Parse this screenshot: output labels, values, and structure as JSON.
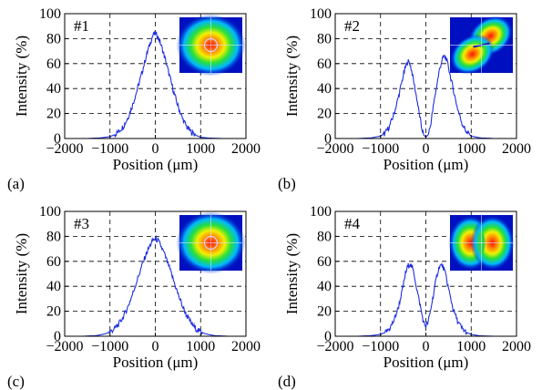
{
  "figure": {
    "label_color": "#000000",
    "line_color": "#1f2fe0"
  },
  "chart_data": [
    {
      "type": "line",
      "panel_letter": "(a)",
      "tag": "#1",
      "xlabel": "Position (μm)",
      "ylabel": "Intensity (%)",
      "xlim": [
        -2000,
        2000
      ],
      "ylim": [
        0,
        100
      ],
      "xticks": [
        -2000,
        -1000,
        0,
        1000,
        2000
      ],
      "yticks": [
        0,
        20,
        40,
        60,
        80,
        100
      ],
      "grid": "dashed",
      "inset_beam": "single-lobe",
      "x": [
        -1500,
        -1200,
        -1000,
        -900,
        -800,
        -700,
        -600,
        -500,
        -400,
        -300,
        -200,
        -100,
        -50,
        0,
        50,
        100,
        200,
        300,
        400,
        500,
        600,
        700,
        800,
        900,
        1000,
        1200,
        1500
      ],
      "y": [
        0,
        0.5,
        1.5,
        3,
        6,
        10,
        17,
        27,
        39,
        52,
        66,
        78,
        83,
        84,
        82,
        78,
        66,
        52,
        38,
        26,
        16,
        9,
        5,
        2.5,
        1,
        0.3,
        0
      ]
    },
    {
      "type": "line",
      "panel_letter": "(b)",
      "tag": "#2",
      "xlabel": "Position (μm)",
      "ylabel": "Intensity (%)",
      "xlim": [
        -2000,
        2000
      ],
      "ylim": [
        0,
        100
      ],
      "xticks": [
        -2000,
        -1000,
        0,
        1000,
        2000
      ],
      "yticks": [
        0,
        20,
        40,
        60,
        80,
        100
      ],
      "grid": "dashed",
      "inset_beam": "two-lobe-diagonal",
      "x": [
        -1500,
        -1200,
        -1000,
        -900,
        -800,
        -700,
        -600,
        -500,
        -450,
        -400,
        -350,
        -300,
        -200,
        -100,
        -50,
        0,
        50,
        100,
        200,
        300,
        350,
        400,
        450,
        500,
        600,
        700,
        800,
        900,
        1000,
        1200,
        1500
      ],
      "y": [
        0,
        0.5,
        2,
        4,
        10,
        20,
        34,
        50,
        57,
        62,
        60,
        52,
        32,
        10,
        3,
        1,
        3,
        10,
        34,
        55,
        62,
        66,
        64,
        57,
        40,
        24,
        12,
        5,
        2,
        0.5,
        0
      ]
    },
    {
      "type": "line",
      "panel_letter": "(c)",
      "tag": "#3",
      "xlabel": "Position (μm)",
      "ylabel": "Intensity (%)",
      "xlim": [
        -2000,
        2000
      ],
      "ylim": [
        0,
        100
      ],
      "xticks": [
        -2000,
        -1000,
        0,
        1000,
        2000
      ],
      "yticks": [
        0,
        20,
        40,
        60,
        80,
        100
      ],
      "grid": "dashed",
      "inset_beam": "single-lobe",
      "x": [
        -1600,
        -1300,
        -1100,
        -1000,
        -900,
        -800,
        -700,
        -600,
        -500,
        -400,
        -300,
        -200,
        -100,
        -50,
        0,
        50,
        100,
        200,
        300,
        400,
        500,
        600,
        700,
        800,
        900,
        1000,
        1100,
        1300,
        1600
      ],
      "y": [
        0,
        0.5,
        2,
        3.5,
        6,
        10,
        16,
        24,
        34,
        45,
        56,
        66,
        74,
        77,
        78,
        77,
        74,
        66,
        56,
        45,
        34,
        24,
        16,
        10,
        6,
        3.5,
        2,
        0.5,
        0
      ]
    },
    {
      "type": "line",
      "panel_letter": "(d)",
      "tag": "#4",
      "xlabel": "Position (μm)",
      "ylabel": "Intensity (%)",
      "xlim": [
        -2000,
        2000
      ],
      "ylim": [
        0,
        100
      ],
      "xticks": [
        -2000,
        -1000,
        0,
        1000,
        2000
      ],
      "yticks": [
        0,
        20,
        40,
        60,
        80,
        100
      ],
      "grid": "dashed",
      "inset_beam": "two-lobe-horizontal",
      "x": [
        -1500,
        -1200,
        -1000,
        -900,
        -800,
        -700,
        -600,
        -500,
        -450,
        -400,
        -350,
        -300,
        -250,
        -200,
        -100,
        -50,
        0,
        50,
        100,
        200,
        250,
        300,
        350,
        400,
        450,
        500,
        600,
        700,
        800,
        900,
        1000,
        1200,
        1500
      ],
      "y": [
        0,
        0.5,
        1.5,
        3,
        6,
        13,
        24,
        40,
        50,
        56,
        58,
        55,
        48,
        38,
        20,
        11,
        8,
        11,
        20,
        40,
        50,
        56,
        57,
        54,
        47,
        38,
        22,
        12,
        6,
        3,
        1.5,
        0.3,
        0
      ]
    }
  ]
}
